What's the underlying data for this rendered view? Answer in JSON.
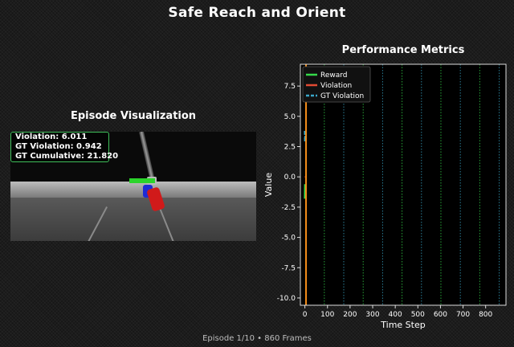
{
  "header": {
    "title": "Safe Reach and Orient"
  },
  "episode": {
    "title": "Episode Visualization",
    "overlay": {
      "line1": "Violation: 6.011",
      "line2": "GT Violation: 0.942",
      "line3": "GT Cumulative: 21.820"
    }
  },
  "footer": {
    "text": "Episode 1/10 • 860 Frames"
  },
  "colors": {
    "reward": "#34d94a",
    "violation": "#e24a33",
    "gt_violation": "#3aa8c9",
    "cursor": "#f28c1a"
  },
  "chart_data": {
    "type": "line",
    "title": "Performance Metrics",
    "xlabel": "Time Step",
    "ylabel": "Value",
    "xlim": [
      -20,
      890
    ],
    "ylim": [
      -10.6,
      9.3
    ],
    "xticks": [
      0,
      100,
      200,
      300,
      400,
      500,
      600,
      700,
      800
    ],
    "yticks": [
      -10.0,
      -7.5,
      -5.0,
      -2.5,
      0.0,
      2.5,
      5.0,
      7.5
    ],
    "legend": {
      "placement": "top-left",
      "entries": [
        "Reward",
        "Violation",
        "GT Violation"
      ]
    },
    "current_step": 5,
    "episode_boundaries": [
      86,
      172,
      258,
      344,
      430,
      516,
      602,
      688,
      774,
      860
    ],
    "series": [
      {
        "name": "Reward",
        "x": [
          0,
          1,
          2,
          3
        ],
        "y": [
          -1.8,
          -0.6,
          -1.2,
          -1.0
        ]
      },
      {
        "name": "Violation",
        "x": [
          0,
          1,
          2
        ],
        "y": [
          0.0,
          0.0,
          0.0
        ]
      },
      {
        "name": "GT Violation",
        "x": [
          0,
          1,
          2,
          3
        ],
        "y": [
          3.8,
          2.9,
          3.4,
          3.0
        ]
      }
    ]
  }
}
